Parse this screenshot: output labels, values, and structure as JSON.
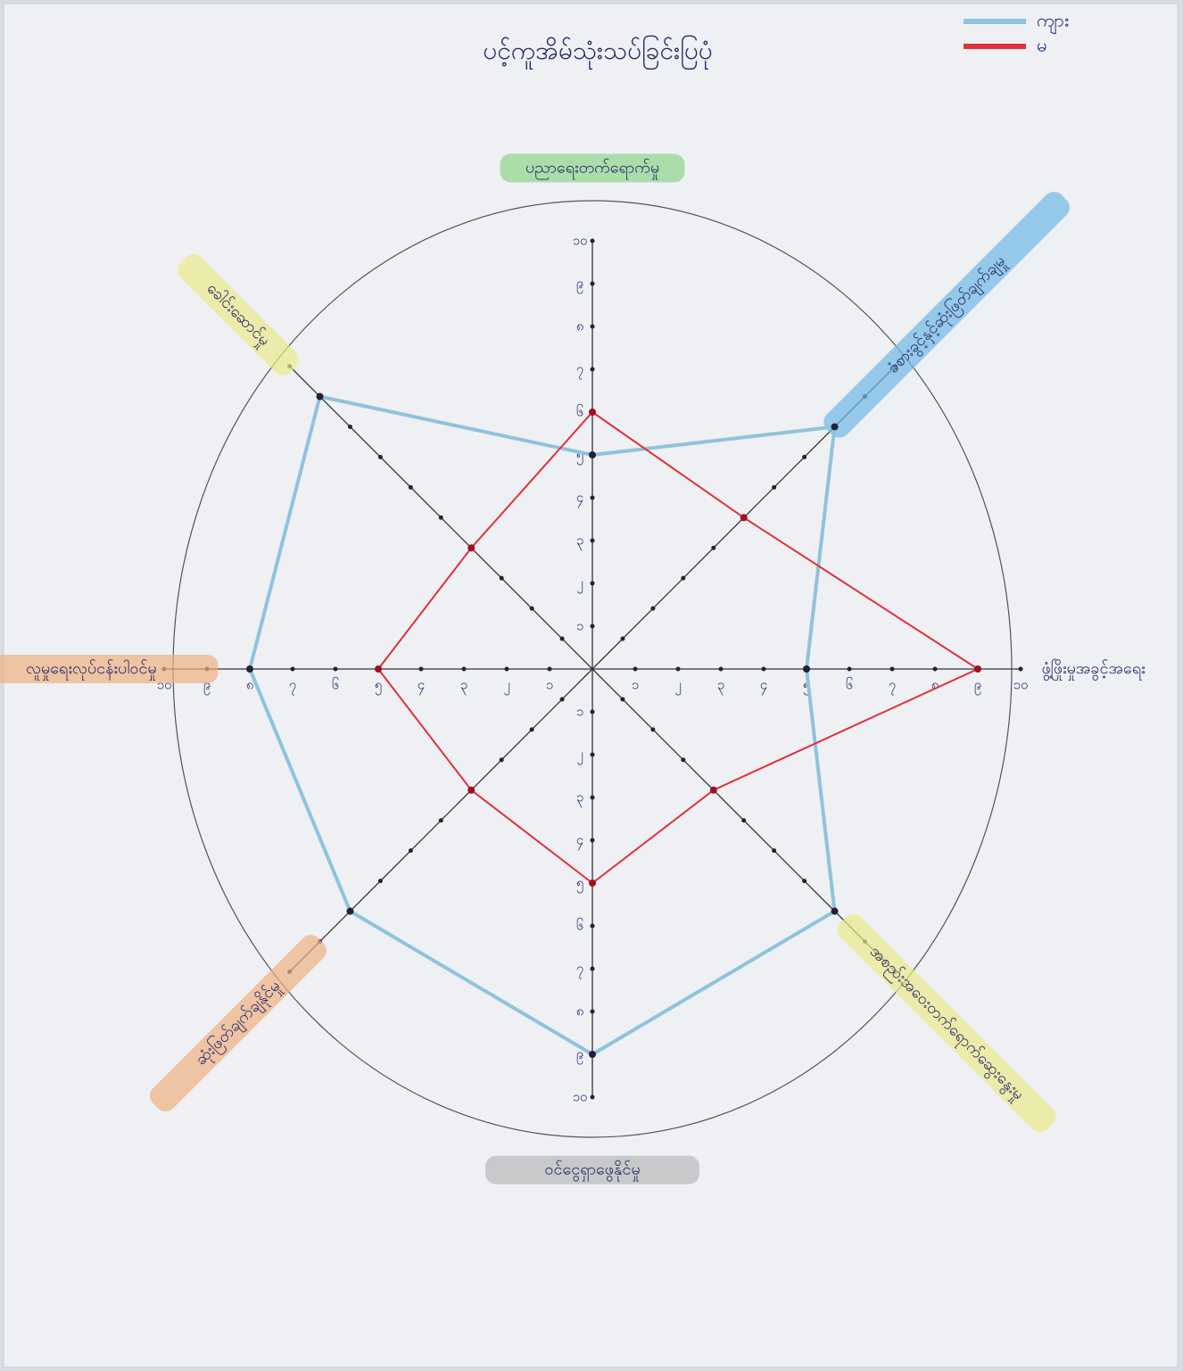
{
  "chart_data": {
    "type": "radar",
    "title": "ပင့်ကူအိမ်သုံးသပ်ခြင်းပြပုံ",
    "categories": [
      "ပညာရေးတက်ရောက်မှု",
      "ခံစားခွင့်နှင့်ဆုံးဖြတ်ချက်ချမှု",
      "ဖွံ့ဖြိုးမှုအခွင့်အရေး",
      "အစည်းအဝေးတက်ရောက်ဆွေးနွေးမှု",
      "ဝင်ငွေရှာဖွေနိုင်မှု",
      "ဆုံးဖြတ်ချက်ချနိုင်မှု",
      "လူမှုရေးလုပ်ငန်းပါဝင်မှု",
      "ခေါင်းဆောင်မှု"
    ],
    "series": [
      {
        "name": "ကျား",
        "color": "#8fc3dc",
        "values": [
          5,
          8,
          5,
          8,
          9,
          8,
          8,
          9
        ]
      },
      {
        "name": "မ",
        "color": "#e0303a",
        "values": [
          6,
          5,
          9,
          4,
          5,
          4,
          5,
          4
        ]
      }
    ],
    "rlim": [
      0,
      10
    ],
    "rticks": [
      {
        "value": 1,
        "label": "၁"
      },
      {
        "value": 2,
        "label": "၂"
      },
      {
        "value": 3,
        "label": "၃"
      },
      {
        "value": 4,
        "label": "၄"
      },
      {
        "value": 5,
        "label": "၅"
      },
      {
        "value": 6,
        "label": "၆"
      },
      {
        "value": 7,
        "label": "၇"
      },
      {
        "value": 8,
        "label": "၈"
      },
      {
        "value": 9,
        "label": "၉"
      },
      {
        "value": 10,
        "label": "၁၀"
      }
    ],
    "legend": "top-right"
  }
}
